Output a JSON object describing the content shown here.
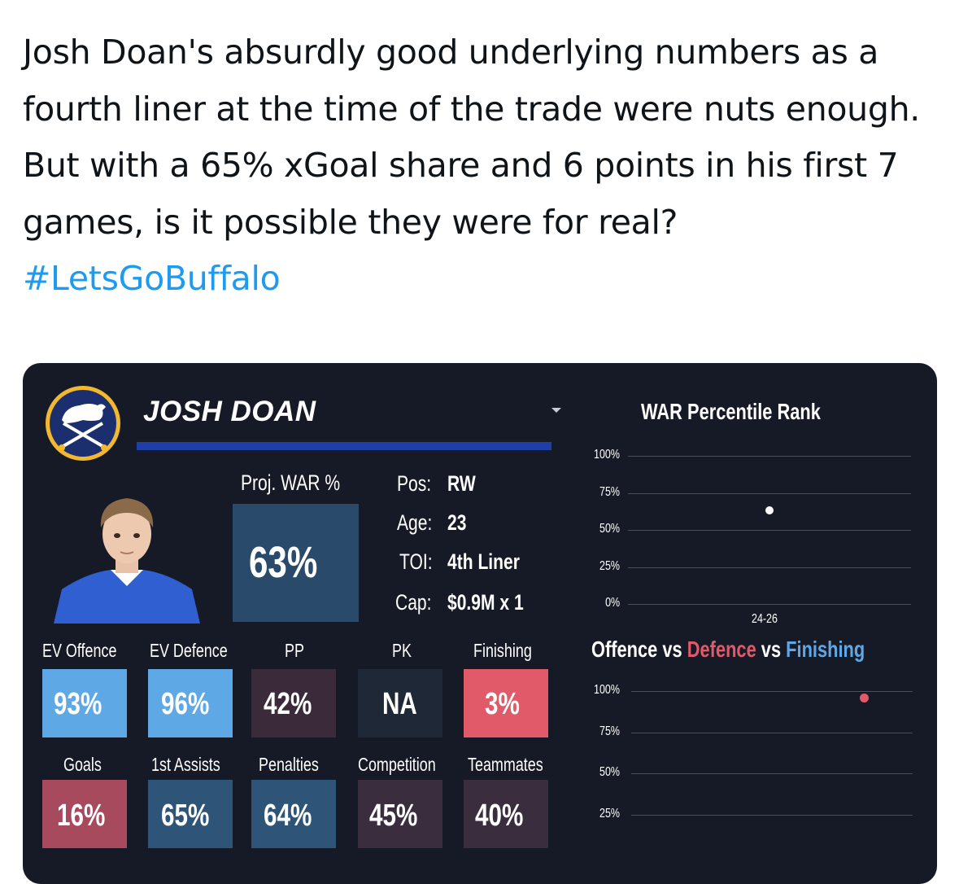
{
  "tweet": {
    "text_main": "Josh Doan's absurdly good underlying numbers as a fourth liner at the time of the trade were nuts enough. But with a 65% xGoal share and 6 points in his first 7 games, is it possible they were for real?",
    "hashtag": "#LetsGoBuffalo"
  },
  "card": {
    "player_name": "JOSH DOAN",
    "proj_war_label": "Proj. WAR %",
    "proj_war_value": "63%",
    "info": [
      {
        "label": "Pos:",
        "value": "RW"
      },
      {
        "label": "Age:",
        "value": "23"
      },
      {
        "label": "TOI:",
        "value": "4th Liner"
      },
      {
        "label": "Cap:",
        "value": "$0.9M x 1"
      }
    ],
    "stats_row1": [
      {
        "label": "EV Offence",
        "value": "93%",
        "color": "#5fa8e6"
      },
      {
        "label": "EV Defence",
        "value": "96%",
        "color": "#5fa8e6"
      },
      {
        "label": "PP",
        "value": "42%",
        "color": "#3a2a3a"
      },
      {
        "label": "PK",
        "value": "NA",
        "color": "#1f2836"
      },
      {
        "label": "Finishing",
        "value": "3%",
        "color": "#e05a6a"
      }
    ],
    "stats_row2": [
      {
        "label": "Goals",
        "value": "16%",
        "color": "#a84a5e"
      },
      {
        "label": "1st Assists",
        "value": "65%",
        "color": "#2e5578"
      },
      {
        "label": "Penalties",
        "value": "64%",
        "color": "#2e5578"
      },
      {
        "label": "Competition",
        "value": "45%",
        "color": "#3a2d3e"
      },
      {
        "label": "Teammates",
        "value": "40%",
        "color": "#3a2d3e"
      }
    ]
  },
  "chart_data": [
    {
      "type": "scatter",
      "title": "WAR Percentile Rank",
      "yticks": [
        "100%",
        "75%",
        "50%",
        "25%",
        "0%"
      ],
      "ylim": [
        0,
        100
      ],
      "x": [
        "24-26"
      ],
      "y": [
        63
      ],
      "point_color": "#ffffff"
    },
    {
      "type": "scatter",
      "title_parts": {
        "offence": "Offence",
        "vs1": "vs",
        "defence": "Defence",
        "vs2": "vs",
        "finishing": "Finishing"
      },
      "title_colors": {
        "offence": "#ffffff",
        "defence": "#e05a6a",
        "finishing": "#5fa8e6"
      },
      "yticks": [
        "100%",
        "75%",
        "50%",
        "25%"
      ],
      "ylim": [
        25,
        100
      ],
      "points": [
        {
          "y": 96,
          "color": "#e05a6a"
        }
      ]
    }
  ]
}
